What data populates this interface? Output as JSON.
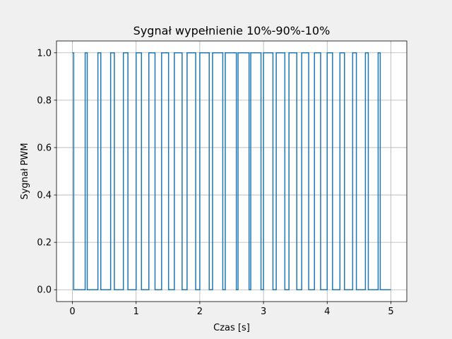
{
  "chart_data": {
    "type": "line",
    "title": "Sygnał wypełnienie 10%-90%-10%",
    "xlabel": "Czas [s]",
    "ylabel": "Sygnał PWM",
    "xlim": [
      -0.25,
      5.25
    ],
    "ylim": [
      -0.05,
      1.05
    ],
    "xticks": [
      0,
      1,
      2,
      3,
      4,
      5
    ],
    "xtick_labels": [
      "0",
      "1",
      "2",
      "3",
      "4",
      "5"
    ],
    "yticks": [
      0.0,
      0.2,
      0.4,
      0.6,
      0.8,
      1.0
    ],
    "ytick_labels": [
      "0.0",
      "0.2",
      "0.4",
      "0.6",
      "0.8",
      "1.0"
    ],
    "grid": true,
    "signal": {
      "kind": "pwm",
      "period_s": 0.2,
      "t_start_s": 0,
      "t_end_s": 5,
      "amplitude_high": 1.0,
      "amplitude_low": 0.0,
      "duty_cycle_start": 0.1,
      "duty_cycle_peak": 0.9,
      "duty_cycle_end": 0.1,
      "peak_time_s": 2.5
    },
    "color": "#1f77b4"
  }
}
